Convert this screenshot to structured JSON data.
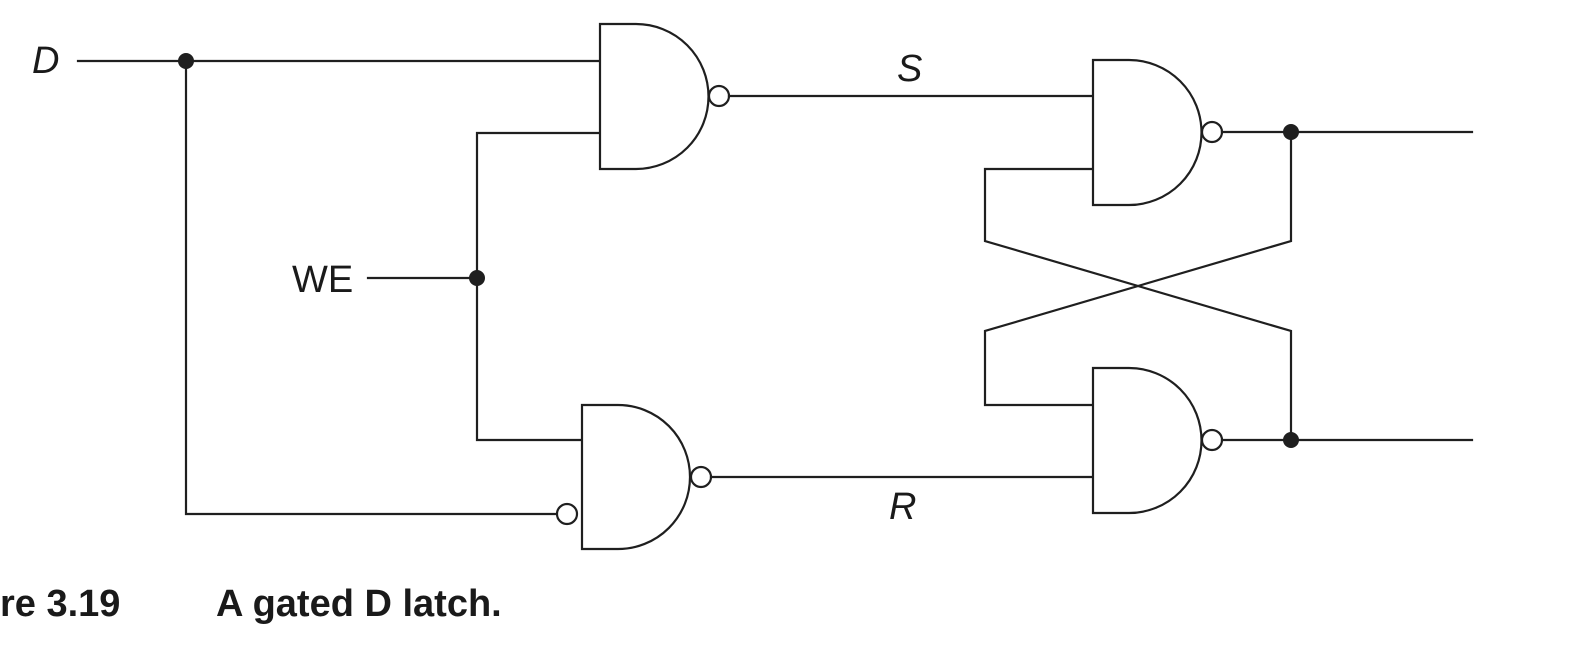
{
  "diagram": {
    "inputs": {
      "d": "D",
      "we": "WE"
    },
    "signals": {
      "s": "S",
      "r": "R"
    }
  },
  "caption": {
    "number": "re 3.19",
    "text": "A gated D latch."
  },
  "colors": {
    "ink": "#1f1f1f",
    "background": "#ffffff"
  }
}
